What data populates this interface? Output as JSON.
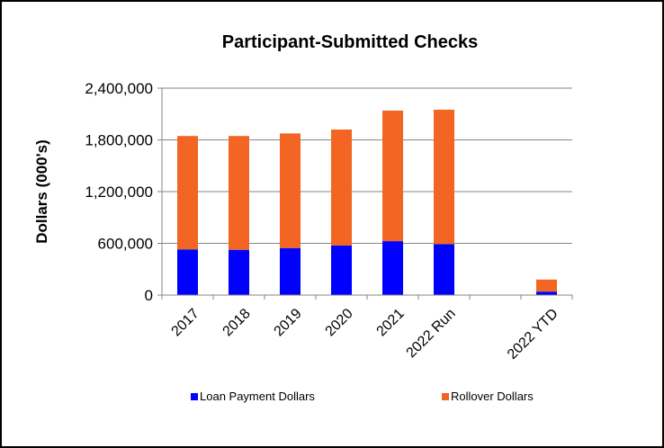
{
  "chart_data": {
    "type": "bar",
    "stacked": true,
    "title": "Participant-Submitted Checks",
    "xlabel": "",
    "ylabel": "Dollars (000's)",
    "ylim": [
      0,
      2400000
    ],
    "yticks": [
      "0",
      "600,000",
      "1,200,000",
      "1,800,000",
      "2,400,000"
    ],
    "ytick_values": [
      0,
      600000,
      1200000,
      1800000,
      2400000
    ],
    "grid": true,
    "legend_position": "bottom",
    "categories": [
      "2017",
      "2018",
      "2019",
      "2020",
      "2021",
      "2022 Run",
      "",
      "2022 YTD"
    ],
    "series": [
      {
        "name": "Loan Payment Dollars",
        "color": "#0000FF",
        "values": [
          530000,
          525000,
          545000,
          575000,
          625000,
          590000,
          null,
          40000
        ]
      },
      {
        "name": "Rollover Dollars",
        "color": "#F26522",
        "values": [
          1315000,
          1320000,
          1330000,
          1345000,
          1515000,
          1560000,
          null,
          140000
        ]
      }
    ]
  }
}
